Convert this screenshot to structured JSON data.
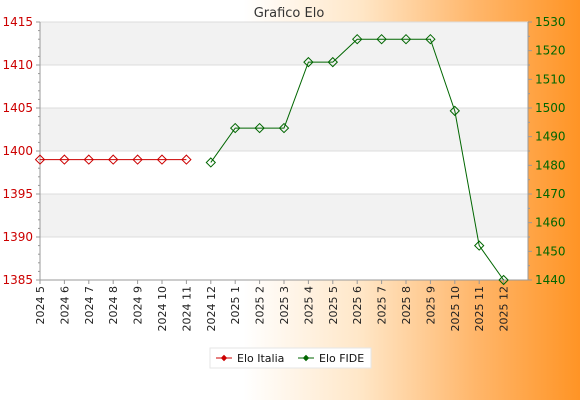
{
  "chart_data": {
    "type": "line",
    "title": "Grafico Elo",
    "categories": [
      "2024 5",
      "2024 6",
      "2024 7",
      "2024 8",
      "2024 9",
      "2024 10",
      "2024 11",
      "2024 12",
      "2025 1",
      "2025 2",
      "2025 3",
      "2025 4",
      "2025 5",
      "2025 6",
      "2025 7",
      "2025 8",
      "2025 9",
      "2025 10",
      "2025 11",
      "2025 12"
    ],
    "y_left": {
      "range": [
        1385,
        1415
      ],
      "ticks": [
        1385,
        1390,
        1395,
        1400,
        1405,
        1410,
        1415
      ],
      "color": "#cc0000"
    },
    "y_right": {
      "range": [
        1440,
        1530
      ],
      "ticks": [
        1440,
        1450,
        1460,
        1470,
        1480,
        1490,
        1500,
        1510,
        1520,
        1530
      ],
      "color": "#006600"
    },
    "series": [
      {
        "name": "Elo Italia",
        "axis": "left",
        "color": "#cc0000",
        "values": [
          1399,
          1399,
          1399,
          1399,
          1399,
          1399,
          1399,
          null,
          null,
          null,
          null,
          null,
          null,
          null,
          null,
          null,
          null,
          null,
          null,
          null
        ]
      },
      {
        "name": "Elo FIDE",
        "axis": "right",
        "color": "#006600",
        "values": [
          null,
          null,
          null,
          null,
          null,
          null,
          null,
          1481,
          1493,
          1493,
          1493,
          1516,
          1516,
          1524,
          1524,
          1524,
          1524,
          1499,
          1452,
          1440
        ]
      }
    ],
    "grid": true,
    "legend": "bottom"
  }
}
